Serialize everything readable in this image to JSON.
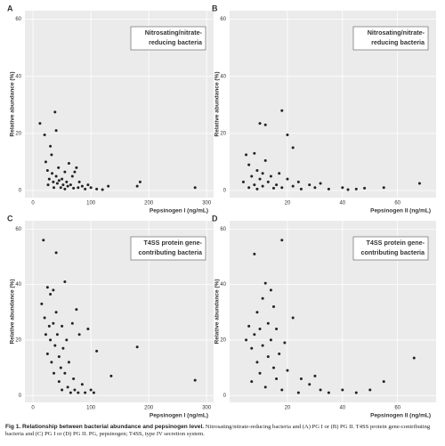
{
  "chart_data": [
    {
      "type": "scatter",
      "panel_label": "A",
      "annotation": [
        "Nitrosating/nitrate-",
        "reducing bacteria"
      ],
      "x_label": "Pepsinogen I (ng/mL)",
      "y_label": "Relative abundance (%)",
      "xlim": [
        -14,
        312
      ],
      "ylim": [
        -2.5,
        63
      ],
      "xticks": [
        0,
        100,
        200,
        300
      ],
      "yticks": [
        0,
        20,
        40,
        60
      ],
      "grid": true,
      "color": "#222222",
      "x": [
        12,
        20,
        22,
        25,
        26,
        28,
        30,
        32,
        33,
        35,
        36,
        38,
        40,
        40,
        42,
        44,
        45,
        48,
        50,
        52,
        55,
        55,
        58,
        60,
        62,
        65,
        68,
        70,
        72,
        75,
        78,
        80,
        85,
        90,
        95,
        100,
        110,
        120,
        130,
        180,
        185,
        280
      ],
      "values": [
        23.5,
        19.5,
        10,
        7,
        2,
        4,
        15.5,
        12.5,
        6,
        3,
        1,
        27.5,
        21,
        5,
        2.5,
        8,
        3.5,
        1,
        4,
        2,
        6.5,
        0.5,
        3,
        1.5,
        9.5,
        2,
        5,
        0.8,
        6.5,
        8,
        1,
        3,
        1.5,
        0.5,
        2,
        1,
        0.5,
        0.3,
        1.5,
        1.5,
        3,
        1
      ]
    },
    {
      "type": "scatter",
      "panel_label": "B",
      "annotation": [
        "Nitrosating/nitrate-",
        "reducing bacteria"
      ],
      "x_label": "Pepsinogen II (ng/mL)",
      "y_label": "Relative abundance (%)",
      "xlim": [
        -1,
        74
      ],
      "ylim": [
        -2.5,
        63
      ],
      "xticks": [
        20,
        40,
        60
      ],
      "yticks": [
        0,
        20,
        40,
        60
      ],
      "grid": true,
      "color": "#222222",
      "x": [
        4,
        5,
        6,
        6,
        7,
        8,
        8,
        9,
        9,
        10,
        10,
        11,
        11,
        12,
        12,
        13,
        14,
        15,
        16,
        17,
        18,
        18,
        20,
        20,
        22,
        22,
        24,
        25,
        28,
        30,
        32,
        35,
        40,
        42,
        45,
        48,
        55,
        68
      ],
      "values": [
        3,
        12.5,
        9,
        1,
        5,
        2,
        13,
        7,
        0.5,
        23.5,
        4,
        6,
        1.5,
        23,
        10.5,
        3,
        5,
        0.8,
        2,
        6,
        28,
        1,
        19.5,
        4,
        15,
        1.5,
        3,
        0.5,
        2,
        1,
        2.5,
        0.5,
        1,
        0.3,
        0.5,
        0.8,
        1,
        2.5
      ]
    },
    {
      "type": "scatter",
      "panel_label": "C",
      "annotation": [
        "T4SS protein gene-",
        "contributing bacteria"
      ],
      "x_label": "Pepsinogen I (ng/mL)",
      "y_label": "Relative abundance (%)",
      "xlim": [
        -14,
        312
      ],
      "ylim": [
        -2.5,
        63
      ],
      "xticks": [
        0,
        100,
        200,
        300
      ],
      "yticks": [
        0,
        20,
        40,
        60
      ],
      "grid": true,
      "color": "#222222",
      "x": [
        15,
        18,
        20,
        22,
        25,
        25,
        28,
        30,
        30,
        32,
        35,
        35,
        36,
        38,
        40,
        40,
        42,
        45,
        45,
        48,
        50,
        50,
        52,
        55,
        55,
        58,
        60,
        62,
        65,
        68,
        70,
        72,
        75,
        78,
        80,
        85,
        90,
        95,
        100,
        105,
        110,
        135,
        180,
        280
      ],
      "values": [
        33,
        56,
        28,
        22,
        39,
        15,
        25,
        36.5,
        20,
        12,
        38,
        26,
        8,
        18,
        51.5,
        30,
        22,
        14,
        5,
        10,
        25,
        2,
        17,
        41,
        8,
        20,
        3,
        12,
        1,
        26,
        6,
        2,
        31,
        1,
        22,
        4,
        1,
        24,
        2,
        1,
        16,
        7,
        17.5,
        5.5
      ]
    },
    {
      "type": "scatter",
      "panel_label": "D",
      "annotation": [
        "T4SS protein gene-",
        "contributing bacteria"
      ],
      "x_label": "Pepsinogen II (ng/mL)",
      "y_label": "Relative abundance (%)",
      "xlim": [
        -1,
        74
      ],
      "ylim": [
        -2.5,
        63
      ],
      "xticks": [
        20,
        40,
        60
      ],
      "yticks": [
        0,
        20,
        40,
        60
      ],
      "grid": true,
      "color": "#222222",
      "x": [
        5,
        6,
        7,
        7,
        8,
        8,
        9,
        9,
        10,
        10,
        11,
        11,
        12,
        12,
        13,
        13,
        14,
        14,
        15,
        15,
        16,
        16,
        17,
        18,
        18,
        19,
        20,
        22,
        24,
        25,
        28,
        30,
        32,
        35,
        40,
        45,
        50,
        55,
        66
      ],
      "values": [
        20,
        25,
        17,
        5,
        51,
        22,
        30,
        12,
        24,
        8,
        35,
        18,
        40.5,
        3,
        26,
        14,
        38,
        20,
        10,
        32,
        6,
        24,
        15,
        56,
        2,
        19,
        9,
        28,
        1,
        6,
        4,
        7,
        2,
        1,
        2,
        1,
        2,
        5,
        13.5
      ]
    }
  ],
  "caption": {
    "label": "Fig 1. Relationship between bacterial abundance and pepsinogen level.",
    "text": "Nitrosating/nitrate-reducing bacteria and (A) PG I or (B) PG II. T4SS protein gene-contributing bacteria and (C) PG I or (D) PG II. PG, pepsinogen; T4SS, type IV secretion system."
  }
}
